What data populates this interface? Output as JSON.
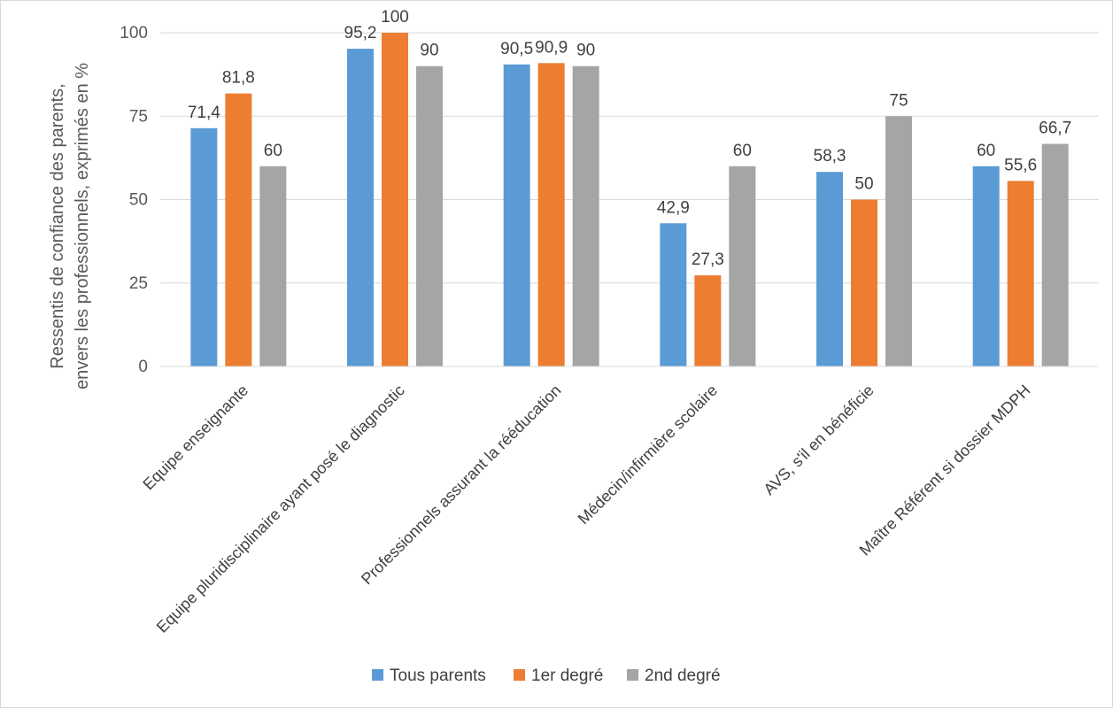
{
  "chart_data": {
    "type": "bar",
    "title": "",
    "xlabel": "",
    "ylabel": "Ressentis de confiance des parents, envers les professionnels, exprimés en %",
    "ylabel_lines": [
      "Ressentis de confiance des parents,",
      "envers les professionnels, exprimés en %"
    ],
    "ylim": [
      0,
      100
    ],
    "yticks": [
      0,
      25,
      50,
      75,
      100
    ],
    "grid": true,
    "legend_position": "bottom",
    "categories": [
      "Equipe enseignante",
      "Equipe pluridisciplinaire ayant posé le diagnostic",
      "Professionnels assurant la rééducation",
      "Médecin/infirmière scolaire",
      "AVS, s'il en bénéficie",
      "Maître Référent si dossier MDPH"
    ],
    "series": [
      {
        "name": "Tous parents",
        "color": "#5B9BD5",
        "values": [
          71.4,
          95.2,
          90.5,
          42.9,
          58.3,
          60
        ],
        "labels": [
          "71,4",
          "95,2",
          "90,5",
          "42,9",
          "58,3",
          "60"
        ]
      },
      {
        "name": "1er degré",
        "color": "#ED7D31",
        "values": [
          81.8,
          100,
          90.9,
          27.3,
          50,
          55.6
        ],
        "labels": [
          "81,8",
          "100",
          "90,9",
          "27,3",
          "50",
          "55,6"
        ]
      },
      {
        "name": "2nd degré",
        "color": "#A5A5A5",
        "values": [
          60,
          90,
          90,
          60,
          75,
          66.7
        ],
        "labels": [
          "60",
          "90",
          "90",
          "60",
          "75",
          "66,7"
        ]
      }
    ]
  }
}
